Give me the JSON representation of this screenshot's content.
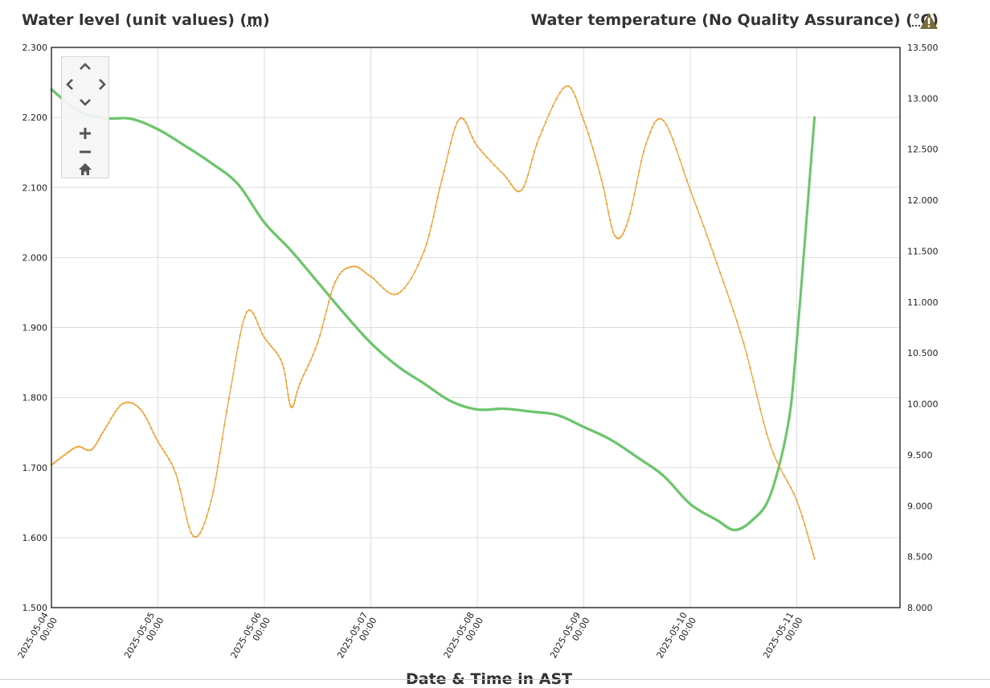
{
  "left_axis_title": {
    "text": "Water level (unit values) (",
    "unit": "m",
    "close": ")"
  },
  "right_axis_title": {
    "text": "Water temperature (No Quality Assurance) (",
    "unit": "°C",
    "close": ")"
  },
  "warning_icon": "warning-triangle-icon",
  "x_axis_title": "Date & Time in AST",
  "nav": [
    "pan-up",
    "pan-left",
    "pan-right",
    "pan-down",
    "zoom-in",
    "zoom-out",
    "reset-home"
  ],
  "colors": {
    "water_level": "#6cc56c",
    "water_temperature": "#f0a030",
    "warning": "#7a6a3a",
    "grid": "#dddddd",
    "axis": "#333333"
  },
  "chart_data": {
    "type": "line",
    "x_ticks": [
      "2025-05-04 00:00",
      "2025-05-05 00:00",
      "2025-05-06 00:00",
      "2025-05-07 00:00",
      "2025-05-08 00:00",
      "2025-05-09 00:00",
      "2025-05-10 00:00",
      "2025-05-11 00:00"
    ],
    "xlim_days": [
      0,
      8.0
    ],
    "y_left": {
      "label": "Water level (unit values) (m)",
      "lim": [
        1.5,
        2.3
      ],
      "ticks": [
        "1.500",
        "1.600",
        "1.700",
        "1.800",
        "1.900",
        "2.000",
        "2.100",
        "2.200",
        "2.300"
      ]
    },
    "y_right": {
      "label": "Water temperature (No Quality Assurance) (°C)",
      "lim": [
        8.0,
        13.5
      ],
      "ticks": [
        "8.000",
        "8.500",
        "9.000",
        "9.500",
        "10.000",
        "10.500",
        "11.000",
        "11.500",
        "12.000",
        "12.500",
        "13.000",
        "13.500"
      ]
    },
    "grid": true,
    "series": [
      {
        "name": "Water level (unit values) (m)",
        "axis": "left",
        "points": [
          [
            "2025-05-04 00:00",
            2.24
          ],
          [
            "2025-05-04 06:00",
            2.21
          ],
          [
            "2025-05-04 12:00",
            2.199
          ],
          [
            "2025-05-04 18:00",
            2.198
          ],
          [
            "2025-05-05 00:00",
            2.183
          ],
          [
            "2025-05-05 06:00",
            2.16
          ],
          [
            "2025-05-05 12:00",
            2.135
          ],
          [
            "2025-05-05 18:00",
            2.105
          ],
          [
            "2025-05-06 00:00",
            2.05
          ],
          [
            "2025-05-06 06:00",
            2.01
          ],
          [
            "2025-05-06 12:00",
            1.965
          ],
          [
            "2025-05-06 18:00",
            1.92
          ],
          [
            "2025-05-07 00:00",
            1.878
          ],
          [
            "2025-05-07 06:00",
            1.845
          ],
          [
            "2025-05-07 12:00",
            1.82
          ],
          [
            "2025-05-07 18:00",
            1.795
          ],
          [
            "2025-05-08 00:00",
            1.783
          ],
          [
            "2025-05-08 06:00",
            1.784
          ],
          [
            "2025-05-08 12:00",
            1.78
          ],
          [
            "2025-05-08 18:00",
            1.775
          ],
          [
            "2025-05-09 00:00",
            1.758
          ],
          [
            "2025-05-09 06:00",
            1.74
          ],
          [
            "2025-05-09 12:00",
            1.715
          ],
          [
            "2025-05-09 18:00",
            1.688
          ],
          [
            "2025-05-10 00:00",
            1.648
          ],
          [
            "2025-05-10 06:00",
            1.625
          ],
          [
            "2025-05-10 10:00",
            1.611
          ],
          [
            "2025-05-10 14:00",
            1.625
          ],
          [
            "2025-05-10 18:00",
            1.66
          ],
          [
            "2025-05-10 22:00",
            1.76
          ],
          [
            "2025-05-11 00:00",
            1.88
          ],
          [
            "2025-05-11 04:00",
            2.2
          ]
        ]
      },
      {
        "name": "Water temperature (No Quality Assurance) (°C)",
        "axis": "right",
        "points": [
          [
            "2025-05-04 00:00",
            9.4
          ],
          [
            "2025-05-04 03:00",
            9.5
          ],
          [
            "2025-05-04 06:00",
            9.58
          ],
          [
            "2025-05-04 09:00",
            9.55
          ],
          [
            "2025-05-04 12:00",
            9.75
          ],
          [
            "2025-05-04 16:00",
            10.0
          ],
          [
            "2025-05-04 20:00",
            9.95
          ],
          [
            "2025-05-05 00:00",
            9.63
          ],
          [
            "2025-05-05 04:00",
            9.32
          ],
          [
            "2025-05-05 08:00",
            8.7
          ],
          [
            "2025-05-05 12:00",
            9.05
          ],
          [
            "2025-05-05 16:00",
            10.05
          ],
          [
            "2025-05-05 20:00",
            10.9
          ],
          [
            "2025-05-06 00:00",
            10.65
          ],
          [
            "2025-05-06 04:00",
            10.4
          ],
          [
            "2025-05-06 06:00",
            9.97
          ],
          [
            "2025-05-06 08:00",
            10.2
          ],
          [
            "2025-05-06 12:00",
            10.6
          ],
          [
            "2025-05-06 16:00",
            11.2
          ],
          [
            "2025-05-06 20:00",
            11.35
          ],
          [
            "2025-05-07 00:00",
            11.25
          ],
          [
            "2025-05-07 06:00",
            11.08
          ],
          [
            "2025-05-07 12:00",
            11.5
          ],
          [
            "2025-05-07 16:00",
            12.2
          ],
          [
            "2025-05-07 20:00",
            12.8
          ],
          [
            "2025-05-08 00:00",
            12.53
          ],
          [
            "2025-05-08 06:00",
            12.25
          ],
          [
            "2025-05-08 10:00",
            12.1
          ],
          [
            "2025-05-08 14:00",
            12.62
          ],
          [
            "2025-05-08 20:00",
            13.12
          ],
          [
            "2025-05-09 00:00",
            12.78
          ],
          [
            "2025-05-09 04:00",
            12.2
          ],
          [
            "2025-05-09 07:00",
            11.65
          ],
          [
            "2025-05-09 10:00",
            11.8
          ],
          [
            "2025-05-09 14:00",
            12.55
          ],
          [
            "2025-05-09 18:00",
            12.78
          ],
          [
            "2025-05-10 00:00",
            12.1
          ],
          [
            "2025-05-10 06:00",
            11.38
          ],
          [
            "2025-05-10 12:00",
            10.6
          ],
          [
            "2025-05-10 18:00",
            9.6
          ],
          [
            "2025-05-11 00:00",
            9.05
          ],
          [
            "2025-05-11 04:00",
            8.48
          ]
        ]
      }
    ]
  }
}
